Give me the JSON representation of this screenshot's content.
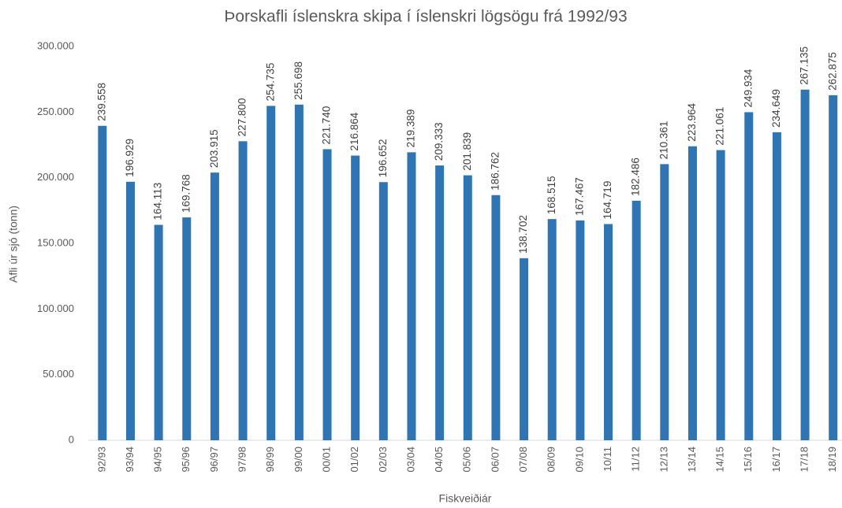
{
  "chart_data": {
    "type": "bar",
    "title": "Þorskafli íslenskra skipa í íslenskri lögsögu frá 1992/93",
    "x_label": "Fiskveiðiár",
    "y_label": "Afli úr sjó (tonn)",
    "categories": [
      "92/93",
      "93/94",
      "94/95",
      "95/96",
      "96/97",
      "97/98",
      "98/99",
      "99/00",
      "00/01",
      "01/02",
      "02/03",
      "03/04",
      "04/05",
      "05/06",
      "06/07",
      "07/08",
      "08/09",
      "09/10",
      "10/11",
      "11/12",
      "12/13",
      "13/14",
      "14/15",
      "15/16",
      "16/17",
      "17/18",
      "18/19"
    ],
    "values": [
      239558,
      196929,
      164113,
      169768,
      203915,
      227800,
      254735,
      255698,
      221740,
      216864,
      196652,
      219389,
      209333,
      201839,
      186762,
      138702,
      168515,
      167467,
      164719,
      182486,
      210361,
      223964,
      221061,
      249934,
      234649,
      267135,
      262875
    ],
    "value_labels": [
      "239.558",
      "196.929",
      "164.113",
      "169.768",
      "203.915",
      "227.800",
      "254.735",
      "255.698",
      "221.740",
      "216.864",
      "196.652",
      "219.389",
      "209.333",
      "201.839",
      "186.762",
      "138.702",
      "168.515",
      "167.467",
      "164.719",
      "182.486",
      "210.361",
      "223.964",
      "221.061",
      "249.934",
      "234.649",
      "267.135",
      "262.875"
    ],
    "color": "#2e75b6",
    "ylim": [
      0,
      300000
    ],
    "yticks": [
      0,
      {
        "value": 50000,
        "label": "50.000"
      },
      {
        "value": 100000,
        "label": "100.000"
      },
      {
        "value": 150000,
        "label": "150.000"
      },
      {
        "value": 200000,
        "label": "200.000"
      },
      {
        "value": 250000,
        "label": "250.000"
      },
      {
        "value": 300000,
        "label": "300.000"
      }
    ],
    "grid": false
  }
}
